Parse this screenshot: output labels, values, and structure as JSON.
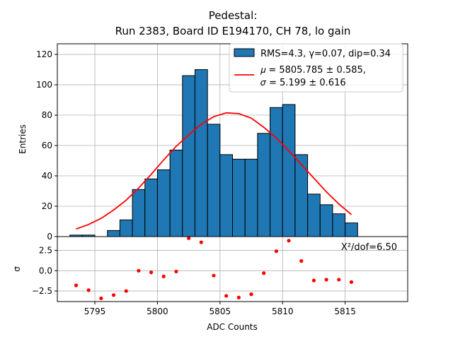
{
  "chart_data": [
    {
      "type": "bar",
      "role": "histogram",
      "title_line1": "Pedestal:",
      "title_line2": "Run 2383, Board ID E194170, CH 78, lo gain",
      "ylabel": "Entries",
      "xlim": [
        5792,
        5820
      ],
      "ylim": [
        0,
        127
      ],
      "xticks": [
        5795,
        5800,
        5805,
        5810,
        5815
      ],
      "yticks": [
        0,
        20,
        40,
        60,
        80,
        100,
        120
      ],
      "grid": true,
      "bar_color": "#1f77b4",
      "bin_width": 1,
      "bin_starts": [
        5793,
        5794,
        5795,
        5796,
        5797,
        5798,
        5799,
        5800,
        5801,
        5802,
        5803,
        5804,
        5805,
        5806,
        5807,
        5808,
        5809,
        5810,
        5811,
        5812,
        5813,
        5814,
        5815
      ],
      "values": [
        1,
        1,
        0,
        4,
        11,
        31,
        38,
        44,
        57,
        106,
        110,
        74,
        54,
        51,
        51,
        68,
        85,
        87,
        54,
        28,
        21,
        15,
        9
      ],
      "fit": {
        "name": "gaussian fit",
        "color": "#ff0000",
        "x": [
          5793.5,
          5794.5,
          5795.5,
          5796.5,
          5797.5,
          5798.5,
          5799.5,
          5800.5,
          5801.5,
          5802.5,
          5803.5,
          5804.5,
          5805.5,
          5806.5,
          5807.5,
          5808.5,
          5809.5,
          5810.5,
          5811.5,
          5812.5,
          5813.5,
          5814.5,
          5815.5
        ],
        "y": [
          5,
          8,
          12,
          17.5,
          24,
          32,
          41,
          50.5,
          59.5,
          67,
          74,
          79,
          81.5,
          81,
          78,
          72,
          65,
          56.5,
          47.5,
          38.5,
          29.5,
          21.5,
          14.5
        ]
      },
      "legend": {
        "position": "top-right",
        "entries": [
          {
            "kind": "patch",
            "label": "RMS=4.3, γ=0.07, dip=0.34"
          },
          {
            "kind": "line",
            "label_line1": "𝜇 = 5805.785 ± 0.585,",
            "label_line2": "𝜎 = 5.199 ± 0.616"
          }
        ]
      }
    },
    {
      "type": "scatter",
      "role": "residuals",
      "xlabel": "ADC Counts",
      "ylabel": "σ",
      "xlim": [
        5792,
        5820
      ],
      "ylim": [
        -3.8,
        4.2
      ],
      "yticks": [
        -2.5,
        0.0,
        2.5
      ],
      "ytick_labels": [
        "−2.5",
        "0.0",
        "2.5"
      ],
      "grid": true,
      "point_color": "#ff0000",
      "x": [
        5793.5,
        5794.5,
        5795.5,
        5796.5,
        5797.5,
        5798.5,
        5799.5,
        5800.5,
        5801.5,
        5802.5,
        5803.5,
        5804.5,
        5805.5,
        5806.5,
        5807.5,
        5808.5,
        5809.5,
        5810.5,
        5811.5,
        5812.5,
        5813.5,
        5814.5,
        5815.5
      ],
      "y": [
        -1.8,
        -2.4,
        -3.4,
        -3.0,
        -2.5,
        0.0,
        -0.2,
        -0.7,
        -0.1,
        4.0,
        3.5,
        -0.6,
        -3.1,
        -3.3,
        -2.9,
        -0.3,
        2.4,
        3.7,
        1.2,
        -1.2,
        -1.1,
        -1.1,
        -1.4
      ],
      "annotation": "X²/dof=6.50"
    }
  ]
}
